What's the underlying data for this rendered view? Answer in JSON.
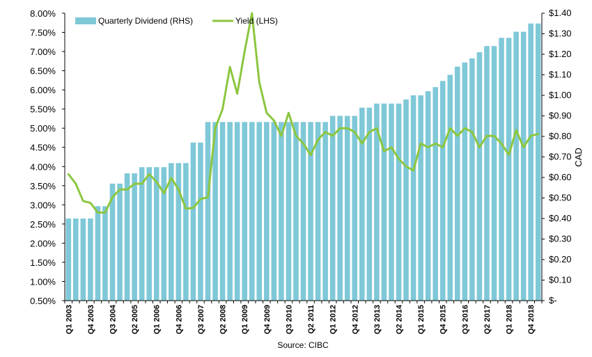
{
  "chart_data": {
    "type": "bar+line",
    "x": [
      "Q1 2003",
      "Q2 2003",
      "Q3 2003",
      "Q4 2003",
      "Q1 2004",
      "Q2 2004",
      "Q3 2004",
      "Q4 2004",
      "Q1 2005",
      "Q2 2005",
      "Q3 2005",
      "Q4 2005",
      "Q1 2006",
      "Q2 2006",
      "Q3 2006",
      "Q4 2006",
      "Q1 2007",
      "Q2 2007",
      "Q3 2007",
      "Q4 2007",
      "Q1 2008",
      "Q2 2008",
      "Q3 2008",
      "Q4 2008",
      "Q1 2009",
      "Q2 2009",
      "Q3 2009",
      "Q4 2009",
      "Q1 2010",
      "Q2 2010",
      "Q3 2010",
      "Q4 2010",
      "Q1 2011",
      "Q2 2011",
      "Q3 2011",
      "Q4 2011",
      "Q1 2012",
      "Q2 2012",
      "Q3 2012",
      "Q4 2012",
      "Q1 2013",
      "Q2 2013",
      "Q3 2013",
      "Q4 2013",
      "Q1 2014",
      "Q2 2014",
      "Q3 2014",
      "Q4 2014",
      "Q1 2015",
      "Q2 2015",
      "Q3 2015",
      "Q4 2015",
      "Q1 2016",
      "Q2 2016",
      "Q3 2016",
      "Q4 2016",
      "Q1 2017",
      "Q2 2017",
      "Q3 2017",
      "Q4 2017",
      "Q1 2018",
      "Q2 2018",
      "Q3 2018",
      "Q4 2018",
      "Q1 2019"
    ],
    "x_tick_labels": [
      "Q1 2003",
      "Q4 2003",
      "Q3 2004",
      "Q2 2005",
      "Q1 2006",
      "Q4 2006",
      "Q3 2007",
      "Q2 2008",
      "Q1 2009",
      "Q4 2009",
      "Q3 2010",
      "Q2 2011",
      "Q1 2012",
      "Q4 2012",
      "Q3 2013",
      "Q2 2014",
      "Q1 2015",
      "Q4 2015",
      "Q3 2016",
      "Q2 2017",
      "Q1 2018",
      "Q4 2018"
    ],
    "series": [
      {
        "name": "Quarterly Dividend (RHS)",
        "type": "bar",
        "axis": "right",
        "color": "#7FC8D8",
        "values": [
          0.4,
          0.4,
          0.4,
          0.4,
          0.46,
          0.46,
          0.57,
          0.57,
          0.62,
          0.62,
          0.65,
          0.65,
          0.65,
          0.65,
          0.67,
          0.67,
          0.67,
          0.77,
          0.77,
          0.87,
          0.87,
          0.87,
          0.87,
          0.87,
          0.87,
          0.87,
          0.87,
          0.87,
          0.87,
          0.87,
          0.87,
          0.87,
          0.87,
          0.87,
          0.87,
          0.87,
          0.9,
          0.9,
          0.9,
          0.9,
          0.94,
          0.94,
          0.96,
          0.96,
          0.96,
          0.96,
          0.98,
          1.0,
          1.0,
          1.02,
          1.04,
          1.07,
          1.1,
          1.14,
          1.16,
          1.18,
          1.21,
          1.24,
          1.24,
          1.28,
          1.28,
          1.31,
          1.31,
          1.35,
          1.35
        ]
      },
      {
        "name": "Yield (LHS)",
        "type": "line",
        "axis": "left",
        "color": "#8CC63F",
        "values": [
          3.8,
          3.55,
          3.1,
          3.05,
          2.8,
          2.8,
          3.2,
          3.4,
          3.4,
          3.55,
          3.55,
          3.8,
          3.6,
          3.3,
          3.7,
          3.4,
          2.9,
          2.92,
          3.15,
          3.2,
          5.0,
          5.5,
          6.6,
          5.9,
          7.0,
          8.0,
          6.2,
          5.4,
          5.2,
          4.8,
          5.4,
          4.8,
          4.6,
          4.3,
          4.7,
          4.9,
          4.8,
          5.0,
          5.0,
          4.9,
          4.6,
          4.9,
          5.0,
          4.4,
          4.5,
          4.2,
          4.0,
          3.9,
          4.6,
          4.5,
          4.6,
          4.5,
          5.0,
          4.8,
          5.0,
          4.9,
          4.5,
          4.8,
          4.8,
          4.6,
          4.3,
          4.95,
          4.5,
          4.8,
          4.85
        ]
      }
    ],
    "y_left": {
      "min": 0.5,
      "max": 8.0,
      "ticks": [
        "8.00%",
        "7.50%",
        "7.00%",
        "6.50%",
        "6.00%",
        "5.50%",
        "5.00%",
        "4.50%",
        "4.00%",
        "3.50%",
        "3.00%",
        "2.50%",
        "2.00%",
        "1.50%",
        "1.00%",
        "0.50%"
      ]
    },
    "y_right": {
      "min": 0.0,
      "max": 1.4,
      "label": "CAD",
      "ticks": [
        "$1.40",
        "$1.30",
        "$1.20",
        "$1.10",
        "$1.00",
        "$0.90",
        "$0.80",
        "$0.70",
        "$0.60",
        "$0.50",
        "$0.40",
        "$0.30",
        "$0.20",
        "$0.10",
        "$-"
      ]
    },
    "grid": false,
    "legend_position": "top-left",
    "source_note": "Source: CIBC"
  }
}
